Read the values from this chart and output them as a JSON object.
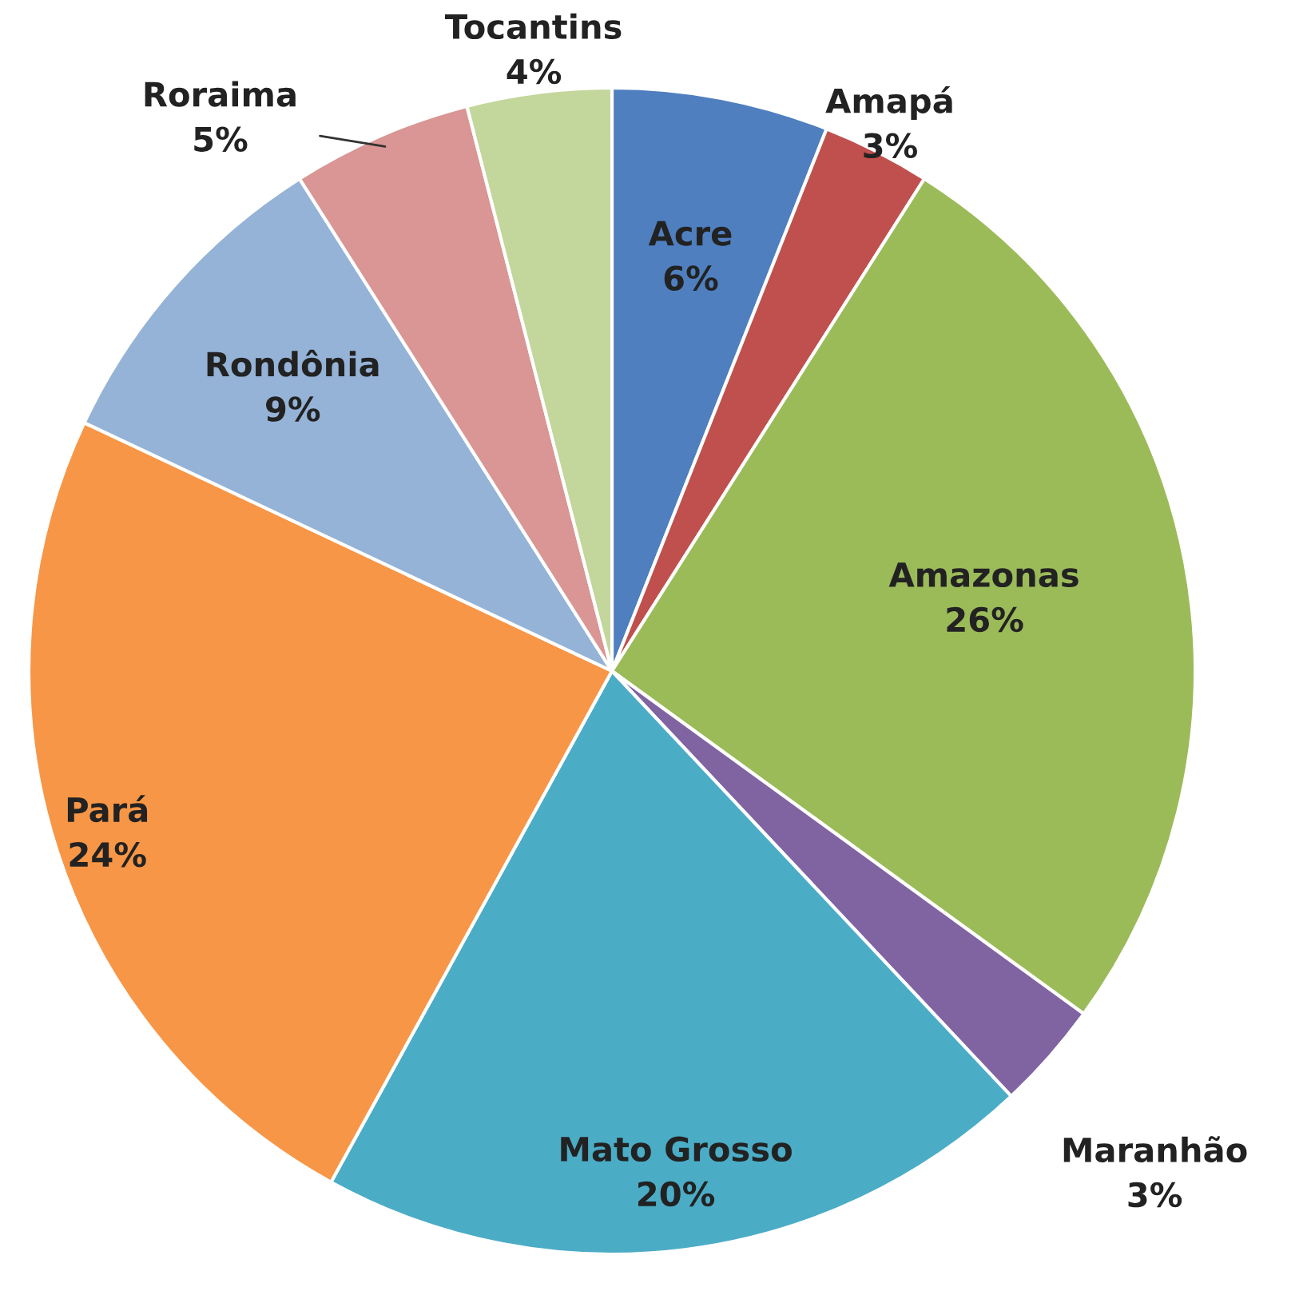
{
  "chart_data": {
    "type": "pie",
    "categories": [
      "Acre",
      "Amapá",
      "Amazonas",
      "Maranhão",
      "Mato Grosso",
      "Pará",
      "Rondônia",
      "Roraima",
      "Tocantins"
    ],
    "values": [
      6,
      3,
      26,
      3,
      20,
      24,
      9,
      5,
      4
    ],
    "value_labels": [
      "6%",
      "3%",
      "26%",
      "3%",
      "20%",
      "24%",
      "9%",
      "5%",
      "4%"
    ],
    "colors": [
      "#4f7fbf",
      "#c0504d",
      "#9bbb59",
      "#8064a2",
      "#4bacc6",
      "#f79646",
      "#95b3d7",
      "#d99694",
      "#c3d69b"
    ]
  }
}
